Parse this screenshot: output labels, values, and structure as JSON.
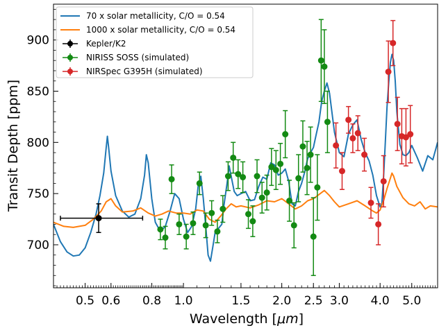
{
  "chart_data": {
    "type": "line",
    "xlabel_prefix": "Wavelength [",
    "xlabel_unit": "μm",
    "xlabel_suffix": "]",
    "ylabel": "Transit Depth [ppm]",
    "xscale": "log",
    "xlim": [
      0.4,
      6.0
    ],
    "ylim": [
      658,
      935
    ],
    "xticks": [
      0.5,
      0.6,
      0.8,
      1.0,
      1.5,
      2.0,
      2.5,
      3.0,
      4.0,
      5.0
    ],
    "xtick_labels": [
      "0.5",
      "0.6",
      "0.8",
      "1.0",
      "1.5",
      "2.0",
      "2.5",
      "3.0",
      "4.0",
      "5.0"
    ],
    "yticks": [
      700,
      750,
      800,
      850,
      900
    ],
    "ytick_labels": [
      "700",
      "750",
      "800",
      "850",
      "900"
    ],
    "legend_position": "top-left",
    "colors": {
      "blue": "#1f77b4",
      "orange": "#ff7f0e",
      "black": "#000000",
      "green": "#138a13",
      "red": "#d62728"
    },
    "lines": [
      {
        "name": "70 x solar metallicity, C/O = 0.54",
        "color": "#1f77b4",
        "points": [
          [
            0.4,
            720
          ],
          [
            0.42,
            703
          ],
          [
            0.44,
            693
          ],
          [
            0.46,
            689
          ],
          [
            0.48,
            690
          ],
          [
            0.5,
            697
          ],
          [
            0.52,
            712
          ],
          [
            0.54,
            730
          ],
          [
            0.555,
            748
          ],
          [
            0.57,
            770
          ],
          [
            0.58,
            795
          ],
          [
            0.585,
            806
          ],
          [
            0.59,
            795
          ],
          [
            0.6,
            772
          ],
          [
            0.62,
            748
          ],
          [
            0.65,
            733
          ],
          [
            0.68,
            727
          ],
          [
            0.71,
            730
          ],
          [
            0.74,
            745
          ],
          [
            0.76,
            768
          ],
          [
            0.77,
            788
          ],
          [
            0.78,
            780
          ],
          [
            0.8,
            745
          ],
          [
            0.82,
            722
          ],
          [
            0.85,
            713
          ],
          [
            0.88,
            718
          ],
          [
            0.91,
            733
          ],
          [
            0.94,
            750
          ],
          [
            0.97,
            745
          ],
          [
            1.0,
            725
          ],
          [
            1.03,
            712
          ],
          [
            1.06,
            718
          ],
          [
            1.09,
            735
          ],
          [
            1.11,
            758
          ],
          [
            1.13,
            767
          ],
          [
            1.15,
            745
          ],
          [
            1.17,
            718
          ],
          [
            1.19,
            690
          ],
          [
            1.21,
            684
          ],
          [
            1.23,
            698
          ],
          [
            1.25,
            712
          ],
          [
            1.28,
            716
          ],
          [
            1.31,
            720
          ],
          [
            1.33,
            738
          ],
          [
            1.36,
            760
          ],
          [
            1.38,
            777
          ],
          [
            1.4,
            767
          ],
          [
            1.43,
            752
          ],
          [
            1.46,
            748
          ],
          [
            1.5,
            750
          ],
          [
            1.55,
            752
          ],
          [
            1.6,
            743
          ],
          [
            1.65,
            744
          ],
          [
            1.7,
            757
          ],
          [
            1.75,
            766
          ],
          [
            1.8,
            764
          ],
          [
            1.85,
            780
          ],
          [
            1.9,
            778
          ],
          [
            1.95,
            768
          ],
          [
            2.0,
            770
          ],
          [
            2.05,
            774
          ],
          [
            2.1,
            762
          ],
          [
            2.15,
            740
          ],
          [
            2.2,
            738
          ],
          [
            2.25,
            752
          ],
          [
            2.3,
            760
          ],
          [
            2.35,
            771
          ],
          [
            2.4,
            784
          ],
          [
            2.45,
            790
          ],
          [
            2.5,
            795
          ],
          [
            2.55,
            808
          ],
          [
            2.6,
            820
          ],
          [
            2.65,
            840
          ],
          [
            2.7,
            850
          ],
          [
            2.75,
            858
          ],
          [
            2.8,
            848
          ],
          [
            2.9,
            810
          ],
          [
            3.0,
            790
          ],
          [
            3.1,
            786
          ],
          [
            3.2,
            808
          ],
          [
            3.3,
            817
          ],
          [
            3.4,
            822
          ],
          [
            3.5,
            803
          ],
          [
            3.6,
            790
          ],
          [
            3.7,
            782
          ],
          [
            3.8,
            768
          ],
          [
            3.9,
            748
          ],
          [
            4.0,
            737
          ],
          [
            4.05,
            740
          ],
          [
            4.1,
            766
          ],
          [
            4.15,
            800
          ],
          [
            4.2,
            835
          ],
          [
            4.25,
            858
          ],
          [
            4.3,
            878
          ],
          [
            4.35,
            886
          ],
          [
            4.4,
            880
          ],
          [
            4.45,
            860
          ],
          [
            4.5,
            830
          ],
          [
            4.6,
            798
          ],
          [
            4.7,
            788
          ],
          [
            4.8,
            787
          ],
          [
            4.9,
            790
          ],
          [
            5.0,
            797
          ],
          [
            5.2,
            785
          ],
          [
            5.4,
            772
          ],
          [
            5.6,
            787
          ],
          [
            5.8,
            783
          ],
          [
            6.0,
            800
          ]
        ]
      },
      {
        "name": "1000 x solar metallicity, C/O = 0.54",
        "color": "#ff7f0e",
        "points": [
          [
            0.4,
            722
          ],
          [
            0.43,
            718
          ],
          [
            0.46,
            717
          ],
          [
            0.5,
            719
          ],
          [
            0.53,
            725
          ],
          [
            0.56,
            733
          ],
          [
            0.58,
            742
          ],
          [
            0.6,
            745
          ],
          [
            0.62,
            738
          ],
          [
            0.65,
            732
          ],
          [
            0.7,
            733
          ],
          [
            0.74,
            736
          ],
          [
            0.78,
            731
          ],
          [
            0.82,
            728
          ],
          [
            0.86,
            730
          ],
          [
            0.9,
            733
          ],
          [
            0.95,
            731
          ],
          [
            1.0,
            731
          ],
          [
            1.05,
            730
          ],
          [
            1.1,
            734
          ],
          [
            1.15,
            733
          ],
          [
            1.2,
            725
          ],
          [
            1.25,
            722
          ],
          [
            1.3,
            728
          ],
          [
            1.35,
            735
          ],
          [
            1.4,
            740
          ],
          [
            1.45,
            737
          ],
          [
            1.5,
            738
          ],
          [
            1.6,
            736
          ],
          [
            1.7,
            739
          ],
          [
            1.8,
            743
          ],
          [
            1.9,
            742
          ],
          [
            2.0,
            745
          ],
          [
            2.1,
            740
          ],
          [
            2.2,
            735
          ],
          [
            2.3,
            738
          ],
          [
            2.4,
            743
          ],
          [
            2.5,
            745
          ],
          [
            2.6,
            749
          ],
          [
            2.7,
            753
          ],
          [
            2.8,
            748
          ],
          [
            2.9,
            742
          ],
          [
            3.0,
            737
          ],
          [
            3.2,
            740
          ],
          [
            3.4,
            743
          ],
          [
            3.6,
            738
          ],
          [
            3.8,
            733
          ],
          [
            3.9,
            731
          ],
          [
            4.0,
            734
          ],
          [
            4.1,
            743
          ],
          [
            4.2,
            755
          ],
          [
            4.3,
            765
          ],
          [
            4.35,
            770
          ],
          [
            4.4,
            767
          ],
          [
            4.5,
            757
          ],
          [
            4.7,
            746
          ],
          [
            4.9,
            740
          ],
          [
            5.1,
            738
          ],
          [
            5.3,
            742
          ],
          [
            5.5,
            735
          ],
          [
            5.7,
            738
          ],
          [
            6.0,
            737
          ]
        ]
      }
    ],
    "errorbar_series": [
      {
        "name": "Kepler/K2",
        "color": "#000000",
        "points": [
          {
            "x": 0.55,
            "y": 726,
            "xerr": [
              0.42,
              0.75
            ],
            "yerr": 14
          }
        ]
      },
      {
        "name": "NIRISS SOSS (simulated)",
        "color": "#138a13",
        "points": [
          {
            "x": 0.85,
            "y": 715,
            "yerr": 10
          },
          {
            "x": 0.88,
            "y": 707,
            "yerr": 11
          },
          {
            "x": 0.92,
            "y": 764,
            "yerr": 14
          },
          {
            "x": 0.97,
            "y": 720,
            "yerr": 10
          },
          {
            "x": 1.02,
            "y": 708,
            "yerr": 12
          },
          {
            "x": 1.07,
            "y": 721,
            "yerr": 11
          },
          {
            "x": 1.12,
            "y": 760,
            "yerr": 11
          },
          {
            "x": 1.17,
            "y": 719,
            "yerr": 12
          },
          {
            "x": 1.22,
            "y": 731,
            "yerr": 12
          },
          {
            "x": 1.27,
            "y": 713,
            "yerr": 11
          },
          {
            "x": 1.32,
            "y": 735,
            "yerr": 13
          },
          {
            "x": 1.37,
            "y": 767,
            "yerr": 14
          },
          {
            "x": 1.42,
            "y": 785,
            "yerr": 15
          },
          {
            "x": 1.47,
            "y": 769,
            "yerr": 14
          },
          {
            "x": 1.52,
            "y": 766,
            "yerr": 15
          },
          {
            "x": 1.58,
            "y": 730,
            "yerr": 14
          },
          {
            "x": 1.63,
            "y": 723,
            "yerr": 15
          },
          {
            "x": 1.68,
            "y": 767,
            "yerr": 16
          },
          {
            "x": 1.74,
            "y": 746,
            "yerr": 15
          },
          {
            "x": 1.8,
            "y": 751,
            "yerr": 17
          },
          {
            "x": 1.86,
            "y": 776,
            "yerr": 18
          },
          {
            "x": 1.92,
            "y": 773,
            "yerr": 19
          },
          {
            "x": 1.98,
            "y": 779,
            "yerr": 20
          },
          {
            "x": 2.05,
            "y": 808,
            "yerr": 23
          },
          {
            "x": 2.11,
            "y": 743,
            "yerr": 20
          },
          {
            "x": 2.18,
            "y": 719,
            "yerr": 22
          },
          {
            "x": 2.25,
            "y": 765,
            "yerr": 23
          },
          {
            "x": 2.32,
            "y": 796,
            "yerr": 25
          },
          {
            "x": 2.39,
            "y": 775,
            "yerr": 26
          },
          {
            "x": 2.45,
            "y": 788,
            "yerr": 27
          },
          {
            "x": 2.5,
            "y": 708,
            "yerr": 38
          },
          {
            "x": 2.57,
            "y": 756,
            "yerr": 32
          },
          {
            "x": 2.64,
            "y": 880,
            "yerr": 40
          },
          {
            "x": 2.7,
            "y": 874,
            "yerr": 36
          },
          {
            "x": 2.76,
            "y": 820,
            "yerr": 30
          }
        ]
      },
      {
        "name": "NIRSpec G395H (simulated)",
        "color": "#d62728",
        "points": [
          {
            "x": 2.93,
            "y": 797,
            "yerr": 22
          },
          {
            "x": 3.06,
            "y": 772,
            "yerr": 18
          },
          {
            "x": 3.2,
            "y": 822,
            "yerr": 13
          },
          {
            "x": 3.3,
            "y": 804,
            "yerr": 14
          },
          {
            "x": 3.42,
            "y": 809,
            "yerr": 17
          },
          {
            "x": 3.58,
            "y": 788,
            "yerr": 16
          },
          {
            "x": 3.75,
            "y": 741,
            "yerr": 15
          },
          {
            "x": 3.95,
            "y": 720,
            "yerr": 20
          },
          {
            "x": 4.1,
            "y": 762,
            "yerr": 25
          },
          {
            "x": 4.24,
            "y": 869,
            "yerr": 30
          },
          {
            "x": 4.38,
            "y": 897,
            "yerr": 22
          },
          {
            "x": 4.52,
            "y": 818,
            "yerr": 26
          },
          {
            "x": 4.66,
            "y": 806,
            "yerr": 27
          },
          {
            "x": 4.8,
            "y": 805,
            "yerr": 28
          },
          {
            "x": 4.95,
            "y": 808,
            "yerr": 28
          }
        ]
      }
    ]
  }
}
